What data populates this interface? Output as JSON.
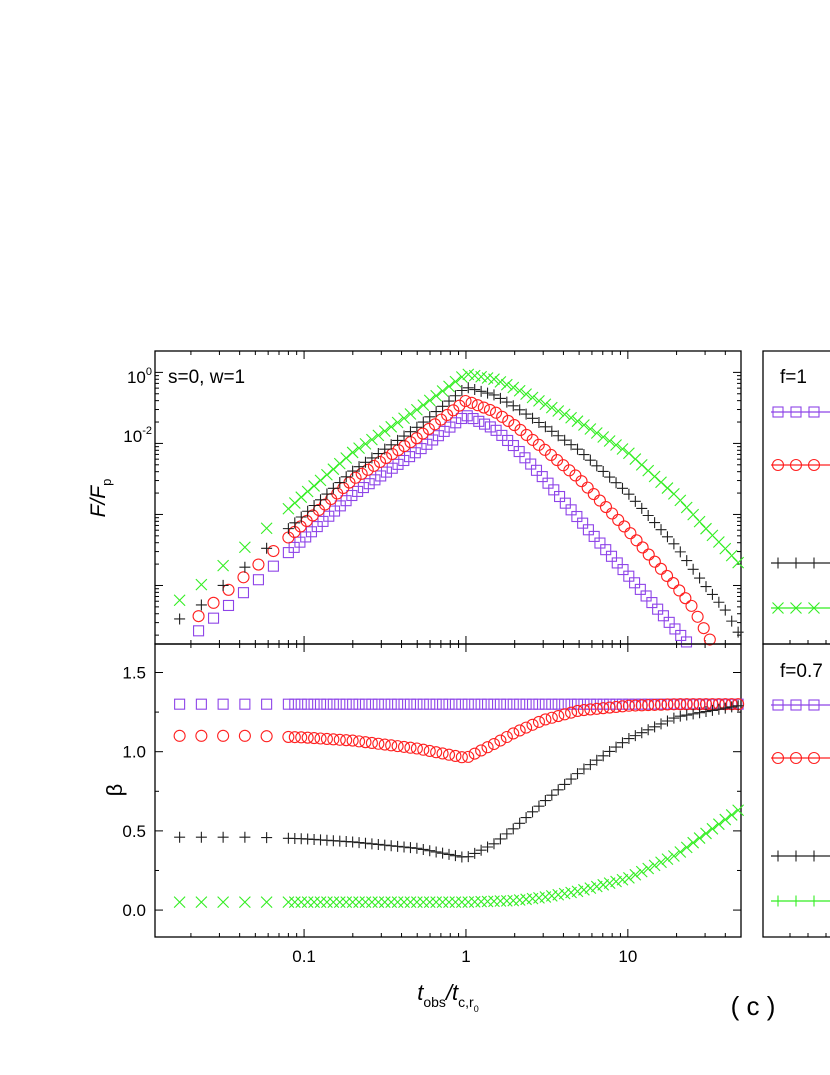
{
  "chart_data": [
    {
      "id": "top",
      "type": "scatter",
      "annotation": "s=0,  w=1",
      "ylabel_main": "F/F",
      "ylabel_sub": "p",
      "xscale": "log",
      "yscale": "log",
      "xlim": [
        0.012,
        50
      ],
      "ylim": [
        0.00015,
        2
      ],
      "yticks": [
        {
          "value": 1,
          "mant": "10",
          "exp": "0"
        },
        {
          "value": 0.01,
          "mant": "10",
          "exp": "-2"
        }
      ],
      "series": [
        {
          "marker": "square",
          "color": "#8e44e8",
          "points": [
            [
              0.0223,
              0.00023
            ],
            [
              0.0316,
              0.00045
            ],
            [
              0.05,
              0.0011
            ],
            [
              0.1,
              0.0046
            ],
            [
              0.2,
              0.019
            ],
            [
              0.5,
              0.077
            ],
            [
              1.0,
              0.25
            ],
            [
              1.5,
              0.16
            ],
            [
              2,
              0.09
            ],
            [
              3,
              0.033
            ],
            [
              5,
              0.0086
            ],
            [
              10,
              0.0014
            ],
            [
              20,
              0.00023
            ],
            [
              25,
              0.00013
            ]
          ]
        },
        {
          "marker": "circle",
          "color": "#ff2020",
          "points": [
            [
              0.0223,
              0.00037
            ],
            [
              0.0316,
              0.00075
            ],
            [
              0.05,
              0.0018
            ],
            [
              0.1,
              0.0075
            ],
            [
              0.2,
              0.031
            ],
            [
              0.5,
              0.12
            ],
            [
              1.0,
              0.4
            ],
            [
              1.5,
              0.28
            ],
            [
              2,
              0.18
            ],
            [
              3,
              0.085
            ],
            [
              5,
              0.032
            ],
            [
              10,
              0.006
            ],
            [
              20,
              0.00095
            ],
            [
              25,
              0.0005
            ],
            [
              35,
              0.00012
            ]
          ]
        },
        {
          "marker": "plus",
          "color": "#202020",
          "points": [
            [
              0.0125,
              0.00022
            ],
            [
              0.0223,
              0.00049
            ],
            [
              0.0316,
              0.001
            ],
            [
              0.05,
              0.0024
            ],
            [
              0.1,
              0.01
            ],
            [
              0.2,
              0.041
            ],
            [
              0.5,
              0.17
            ],
            [
              1.0,
              0.62
            ],
            [
              1.5,
              0.48
            ],
            [
              2,
              0.33
            ],
            [
              3,
              0.18
            ],
            [
              5,
              0.08
            ],
            [
              10,
              0.02
            ],
            [
              20,
              0.0035
            ],
            [
              30,
              0.001
            ],
            [
              40,
              0.00045
            ],
            [
              48,
              0.00022
            ]
          ]
        },
        {
          "marker": "x",
          "color": "#33ee22",
          "points": [
            [
              0.0125,
              0.00038
            ],
            [
              0.0223,
              0.00095
            ],
            [
              0.0316,
              0.0019
            ],
            [
              0.05,
              0.0046
            ],
            [
              0.1,
              0.019
            ],
            [
              0.2,
              0.075
            ],
            [
              0.5,
              0.3
            ],
            [
              1.0,
              0.95
            ],
            [
              1.5,
              0.8
            ],
            [
              2,
              0.6
            ],
            [
              3,
              0.37
            ],
            [
              5,
              0.2
            ],
            [
              10,
              0.075
            ],
            [
              20,
              0.018
            ],
            [
              30,
              0.0065
            ],
            [
              40,
              0.0033
            ],
            [
              48,
              0.0021
            ]
          ]
        }
      ]
    },
    {
      "id": "bottom",
      "type": "scatter",
      "ylabel": "β",
      "xlabel_main": "t",
      "xlabel_sub1": "obs",
      "xlabel_slash": "/t",
      "xlabel_sub2": "c,r",
      "xlabel_sub3": "0",
      "xscale": "log",
      "yscale": "linear",
      "xlim": [
        0.012,
        50
      ],
      "ylim": [
        -0.17,
        1.68
      ],
      "xticks": [
        {
          "value": 0.1,
          "label": "0.1"
        },
        {
          "value": 1,
          "label": "1"
        },
        {
          "value": 10,
          "label": "10"
        }
      ],
      "yticks": [
        {
          "value": 0.0,
          "label": "0.0"
        },
        {
          "value": 0.5,
          "label": "0.5"
        },
        {
          "value": 1.0,
          "label": "1.0"
        },
        {
          "value": 1.5,
          "label": "1.5"
        }
      ],
      "series": [
        {
          "marker": "square",
          "color": "#8e44e8",
          "points": [
            [
              0.0125,
              1.3
            ],
            [
              0.5,
              1.3
            ],
            [
              1,
              1.3
            ],
            [
              5,
              1.3
            ],
            [
              20,
              1.3
            ],
            [
              48,
              1.3
            ]
          ]
        },
        {
          "marker": "circle",
          "color": "#ff2020",
          "points": [
            [
              0.0125,
              1.1
            ],
            [
              0.05,
              1.1
            ],
            [
              0.1,
              1.09
            ],
            [
              0.2,
              1.07
            ],
            [
              0.5,
              1.02
            ],
            [
              1.0,
              0.96
            ],
            [
              1.5,
              1.05
            ],
            [
              2,
              1.12
            ],
            [
              3,
              1.2
            ],
            [
              5,
              1.26
            ],
            [
              10,
              1.29
            ],
            [
              20,
              1.3
            ],
            [
              48,
              1.3
            ]
          ]
        },
        {
          "marker": "plus",
          "color": "#202020",
          "points": [
            [
              0.0125,
              0.46
            ],
            [
              0.05,
              0.46
            ],
            [
              0.1,
              0.45
            ],
            [
              0.2,
              0.43
            ],
            [
              0.5,
              0.39
            ],
            [
              0.8,
              0.35
            ],
            [
              1.0,
              0.33
            ],
            [
              1.5,
              0.42
            ],
            [
              2,
              0.52
            ],
            [
              3,
              0.68
            ],
            [
              5,
              0.87
            ],
            [
              10,
              1.08
            ],
            [
              20,
              1.22
            ],
            [
              48,
              1.29
            ]
          ]
        },
        {
          "marker": "x",
          "color": "#33ee22",
          "points": [
            [
              0.0125,
              0.05
            ],
            [
              0.1,
              0.05
            ],
            [
              0.5,
              0.05
            ],
            [
              1,
              0.05
            ],
            [
              2,
              0.06
            ],
            [
              3,
              0.08
            ],
            [
              5,
              0.12
            ],
            [
              10,
              0.2
            ],
            [
              20,
              0.35
            ],
            [
              48,
              0.63
            ]
          ]
        }
      ]
    }
  ],
  "right_panel": {
    "top_label": "f=1",
    "bottom_label": "f=0.7"
  },
  "footer": {
    "panel_label": "( c )"
  }
}
